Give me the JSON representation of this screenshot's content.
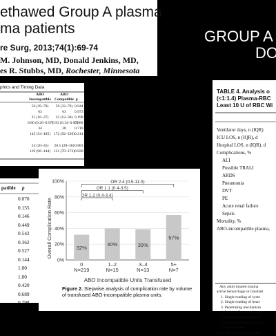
{
  "title_card": {
    "line1": "ethawed Group A plasma",
    "line2": "ma patients",
    "citation": "re Surg, 2013;74(1):69-74",
    "authors_line1": "M. Johnson, MD, Donald Jenkins, MD,",
    "authors_line2_names": "es R. Stubbs, MD,",
    "authors_line2_place": "Rochester, Minnesota"
  },
  "slide_title": {
    "line1": "GROUP A",
    "line2": "DO"
  },
  "table1": {
    "header": "phics and Timing Data",
    "col_headers": {
      "a_top": "ABO",
      "a_bottom": "Incompatible",
      "b_top": "ABO",
      "b_bottom": "Compatible",
      "p": "p"
    },
    "rows": [
      {
        "a": "56 (39–79)",
        "b": "59 (32–79)",
        "p": "0.944"
      },
      {
        "a": "63",
        "b": "63",
        "p": "0.973"
      },
      {
        "a": "25 (16–37)",
        "b": "22 (12–30)",
        "p": "0.199"
      },
      {
        "a": "0.86 (0.26–0.97)",
        "b": "0.93 (0.34–0.97)",
        "p": "0.880"
      },
      {
        "a": "34",
        "b": "38",
        "p": "0.710"
      },
      {
        "a": "145 (54–185)",
        "b": "172 (92–230)",
        "p": "0.214"
      },
      {
        "a": "",
        "b": "",
        "p": ""
      },
      {
        "a": "24 (20–35)",
        "b": "26.5 (20–36)",
        "p": "0.883"
      },
      {
        "a": "119 (96–144)",
        "b": "121 (70–172)",
        "p": "0.920"
      }
    ]
  },
  "table4": {
    "title_line1": "TABLE 4.   Analysis o",
    "title_line2": "(<1:1.4) Plasma-RBC",
    "title_line3": "Least 10 U of RBC Wi",
    "rows": [
      "Ventilator days, n (IQR)",
      "ICU LOS, n (IQR), d",
      "Hospital LOS, n (IQR), d",
      "Complications, %",
      "ALI",
      "Possible TRALI",
      "ARDS",
      "Pneumonia",
      "DVT",
      "PE",
      "Acute renal failure",
      "Sepsis",
      "Mortality, %",
      "ABO-incompatible plasma,"
    ],
    "notes": [
      "Any adult injured trauma",
      "active hemorrhage or traumati",
      "1. Single reading of systo",
      "2. Single reading of heart",
      "3. Penetrating mechanism",
      "4. Positive Focused Assess",
      "5. Point-of-care lactate of",
      "6. Point-of-care internation",
      "7. Warfarin use.",
      "DVT, deep venous thrombo"
    ]
  },
  "pcol": {
    "header_label": "patible",
    "header_p": "p",
    "values": [
      "0.070",
      "0.155",
      "0.146",
      "0.449",
      "0.542",
      "0.362",
      "0.527",
      "0.144",
      "1.00",
      "1.00",
      "0.420",
      "0.689",
      "0.798"
    ]
  },
  "figure": {
    "caption_bold": "Figure 2.",
    "caption_line1": "  Stepwise analysis of complication rate by volume",
    "caption_line2": "of transfused ABO-incompatible plasma units."
  },
  "chart_data": {
    "type": "bar",
    "categories": [
      "0",
      "1–2",
      "3–4",
      "5+"
    ],
    "sample_sizes": [
      "N=219",
      "N=15",
      "N=13",
      "N=7"
    ],
    "values": [
      32,
      40,
      39,
      57
    ],
    "data_labels": [
      "32%",
      "40%",
      "39%",
      "57%"
    ],
    "xlabel": "ABO Incompatible Units Transfused",
    "ylabel": "Overall Complication Rate",
    "ylim": [
      0,
      100
    ],
    "yticks": [
      "0%",
      "20%",
      "40%",
      "60%",
      "80%",
      "100%"
    ],
    "odds_ratios": [
      {
        "from": 0,
        "to": 1,
        "label": "OR 1.2 (0.4-3.4)"
      },
      {
        "from": 0,
        "to": 2,
        "label": "OR 1.1 (0.4-3.5)"
      },
      {
        "from": 0,
        "to": 3,
        "label": "OR 2.4 (0.5-11.0)"
      }
    ],
    "bar_color": "#c8c8c8"
  }
}
